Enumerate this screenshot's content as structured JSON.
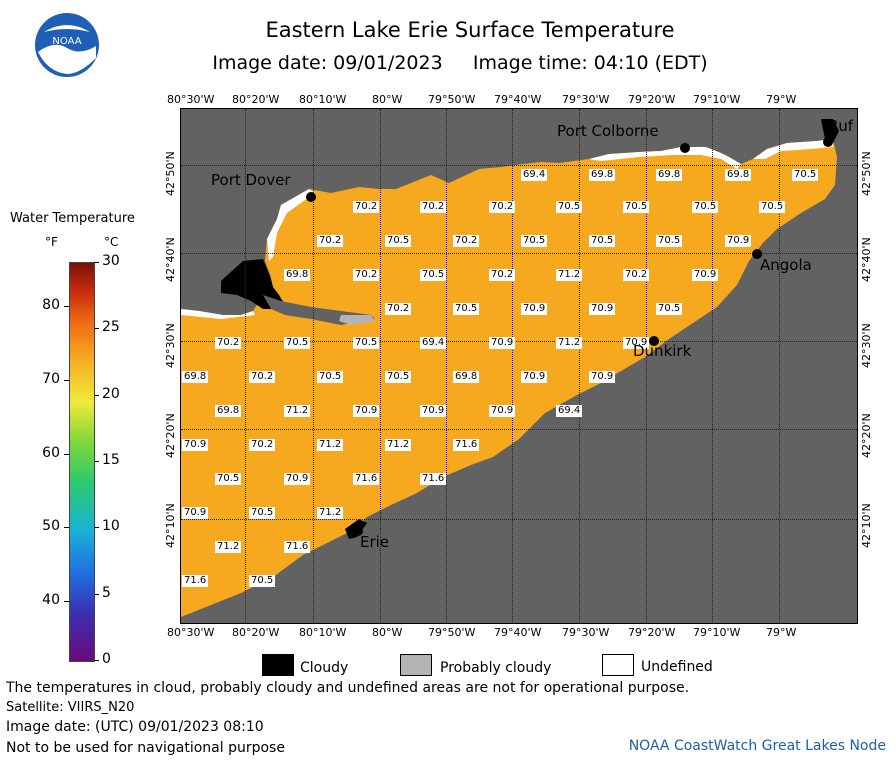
{
  "header": {
    "title": "Eastern Lake Erie Surface Temperature",
    "subtitle": "Image date: 09/01/2023     Image time: 04:10 (EDT)",
    "logo_text": "NOAA"
  },
  "axes": {
    "lon_labels": [
      "80°30'W",
      "80°20'W",
      "80°10'W",
      "80°W",
      "79°50'W",
      "79°40'W",
      "79°30'W",
      "79°20'W",
      "79°10'W",
      "79°W"
    ],
    "lat_labels": [
      "42°50'N",
      "42°40'N",
      "42°30'N",
      "42°20'N",
      "42°10'N"
    ]
  },
  "cities": {
    "port_colborne": "Port Colborne",
    "port_dover": "Port Dover",
    "angola": "Angola",
    "dunkirk": "Dunkirk",
    "erie": "Erie",
    "buffalo": "Buf"
  },
  "temperatures": [
    "69.4",
    "69.8",
    "69.8",
    "69.8",
    "70.5",
    "70.2",
    "70.2",
    "70.2",
    "70.5",
    "70.5",
    "70.5",
    "70.5",
    "70.2",
    "70.5",
    "70.2",
    "70.5",
    "70.5",
    "70.5",
    "70.9",
    "69.8",
    "70.2",
    "70.5",
    "70.2",
    "71.2",
    "70.2",
    "70.9",
    "70.2",
    "70.5",
    "70.9",
    "70.9",
    "70.5",
    "70.2",
    "70.5",
    "70.5",
    "69.4",
    "70.9",
    "71.2",
    "70.9",
    "69.8",
    "70.2",
    "70.5",
    "70.5",
    "69.8",
    "70.9",
    "70.9",
    "69.8",
    "71.2",
    "70.9",
    "70.9",
    "70.9",
    "69.4",
    "70.9",
    "70.2",
    "71.2",
    "71.2",
    "71.6",
    "70.5",
    "70.9",
    "71.6",
    "71.6",
    "70.9",
    "70.5",
    "71.2",
    "71.2",
    "71.6",
    "71.6",
    "70.5"
  ],
  "legend": {
    "title": "Water Temperature",
    "unit_f": "°F",
    "unit_c": "°C",
    "f_ticks": [
      "80",
      "70",
      "60",
      "50",
      "40"
    ],
    "c_ticks": [
      "30",
      "25",
      "20",
      "15",
      "10",
      "5",
      "0"
    ],
    "range_c": [
      0,
      30
    ],
    "range_f": [
      32,
      86
    ]
  },
  "key": {
    "cloudy": "Cloudy",
    "probably_cloudy": "Probably cloudy",
    "undefined": "Undefined"
  },
  "notes": {
    "disclaimer": "The temperatures in cloud, probably cloudy and undefined areas are not for operational purpose.",
    "satellite": "Satellite: VIIRS_N20",
    "utc": "Image date: (UTC) 09/01/2023  08:10",
    "navigation": "Not to be used for navigational purpose",
    "credit": "NOAA CoastWatch Great Lakes Node"
  },
  "colors": {
    "land": "#626262",
    "water": "#f6a81e",
    "cloud": "#000000",
    "probably_cloudy": "#b4b4b4",
    "undefined": "#ffffff"
  }
}
